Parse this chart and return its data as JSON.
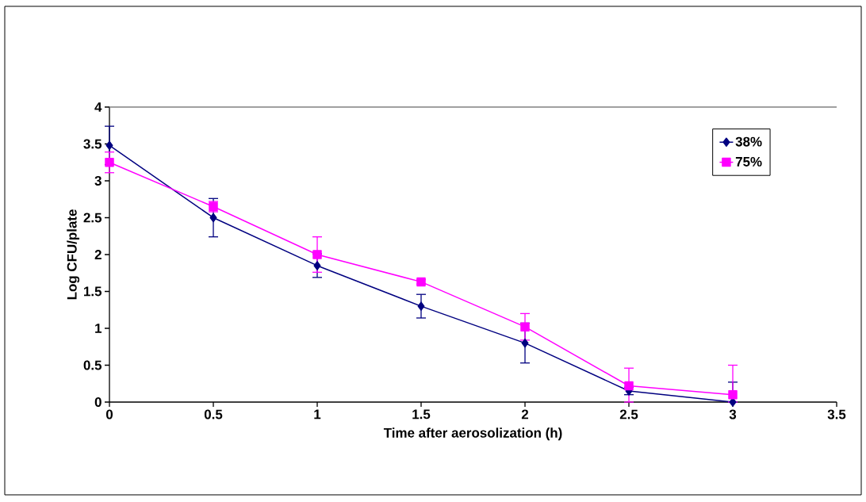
{
  "chart_data": {
    "type": "line",
    "xlabel": "Time after aerosolization (h)",
    "ylabel": "Log CFU/plate",
    "x": [
      0,
      0.5,
      1,
      1.5,
      2,
      2.5,
      3
    ],
    "series": [
      {
        "name": "38%",
        "color": "#000080",
        "marker": "diamond",
        "values": [
          3.48,
          2.5,
          1.85,
          1.3,
          0.8,
          0.15,
          0.0
        ],
        "errors": [
          0.26,
          0.26,
          0.16,
          0.16,
          0.27,
          0.05,
          [
            0,
            0.27
          ]
        ]
      },
      {
        "name": "75%",
        "color": "#ff00ff",
        "marker": "square",
        "values": [
          3.25,
          2.65,
          2.0,
          1.63,
          1.02,
          0.22,
          0.1
        ],
        "errors": [
          0.14,
          0.07,
          0.24,
          0.03,
          0.18,
          [
            0,
            0.46
          ],
          [
            0,
            0.5
          ]
        ]
      }
    ],
    "xlim": [
      0,
      3.5
    ],
    "ylim": [
      0,
      4
    ],
    "xticks": [
      0,
      0.5,
      1,
      1.5,
      2,
      2.5,
      3,
      3.5
    ],
    "yticks": [
      0,
      0.5,
      1,
      1.5,
      2,
      2.5,
      3,
      3.5,
      4
    ],
    "grid": false,
    "legend": "top right",
    "line_style": "solid"
  }
}
